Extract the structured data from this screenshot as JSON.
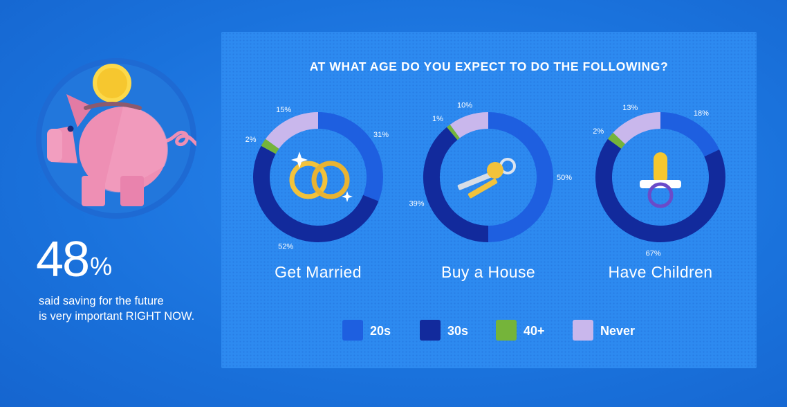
{
  "left": {
    "stat_value": "48",
    "stat_unit": "%",
    "desc_line1": "said saving for the future",
    "desc_line2": "is very important RIGHT NOW."
  },
  "colors": {
    "background": "#1a72dc",
    "panel": "#2d8af0",
    "20s": "#1e5fe0",
    "30s": "#122a9c",
    "40+": "#75b43a",
    "Never": "#c9b7ec",
    "pig": "#ee8fb4",
    "coin": "#fcd94b"
  },
  "chart_data": {
    "type": "pie",
    "style": "donut",
    "title": "AT WHAT AGE DO YOU EXPECT TO DO THE FOLLOWING?",
    "legend_position": "bottom",
    "categories": [
      "20s",
      "30s",
      "40+",
      "Never"
    ],
    "charts": [
      {
        "name": "Get Married",
        "icon": "wedding-rings-icon",
        "values": [
          31,
          52,
          2,
          15
        ],
        "labels": [
          "31%",
          "52%",
          "2%",
          "15%"
        ]
      },
      {
        "name": "Buy a House",
        "icon": "keys-icon",
        "values": [
          50,
          39,
          1,
          10
        ],
        "labels": [
          "50%",
          "39%",
          "1%",
          "10%"
        ]
      },
      {
        "name": "Have Children",
        "icon": "pacifier-icon",
        "values": [
          18,
          67,
          2,
          13
        ],
        "labels": [
          "18%",
          "67%",
          "2%",
          "13%"
        ]
      }
    ]
  }
}
